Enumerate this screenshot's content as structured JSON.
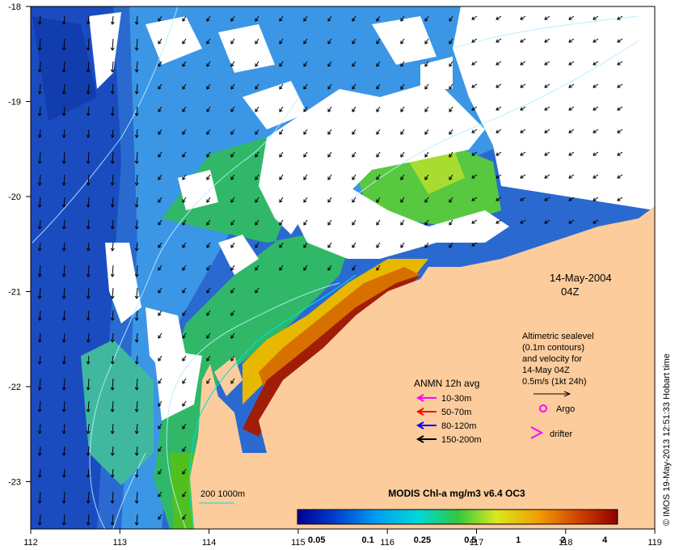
{
  "map": {
    "date_label": "14-May-2004",
    "time_label": "04Z",
    "credit": "© IMOS 19-May-2013 12:51:33 Hobart time",
    "x_ticks": [
      "112",
      "113",
      "114",
      "115",
      "116",
      "117",
      "118",
      "119"
    ],
    "y_ticks": [
      "-18",
      "-19",
      "-20",
      "-21",
      "-22",
      "-23"
    ]
  },
  "altimetry": {
    "lines": [
      "Altimetric sealevel",
      "(0.1m contours)",
      "and velocity for",
      "14-May 04Z",
      "0.5m/s (1kt 24h)"
    ]
  },
  "anmn": {
    "title": "ANMN 12h avg",
    "items": [
      {
        "label": "10-30m",
        "color": "#ff00ff"
      },
      {
        "label": "50-70m",
        "color": "#ff0000"
      },
      {
        "label": "80-120m",
        "color": "#0000ff"
      },
      {
        "label": "150-200m",
        "color": "#000000"
      }
    ]
  },
  "markers": {
    "argo": {
      "label": "Argo",
      "color": "#ff00ff"
    },
    "drifter": {
      "label": "drifter",
      "color": "#ff00ff"
    }
  },
  "bathymetry": {
    "label": "200  1000m",
    "color": "#00e0e0"
  },
  "colorbar": {
    "title": "MODIS Chl-a mg/m3 v6.4 OC3",
    "ticks": [
      "0.05",
      "0.1",
      "0.25",
      "0.5",
      "1",
      "2",
      "4"
    ]
  },
  "colors": {
    "land": "#fccc9c",
    "ocean_low": "#1a50c8",
    "ocean_mid": "#3ca0e8",
    "coast_high": "#a01a0a"
  }
}
